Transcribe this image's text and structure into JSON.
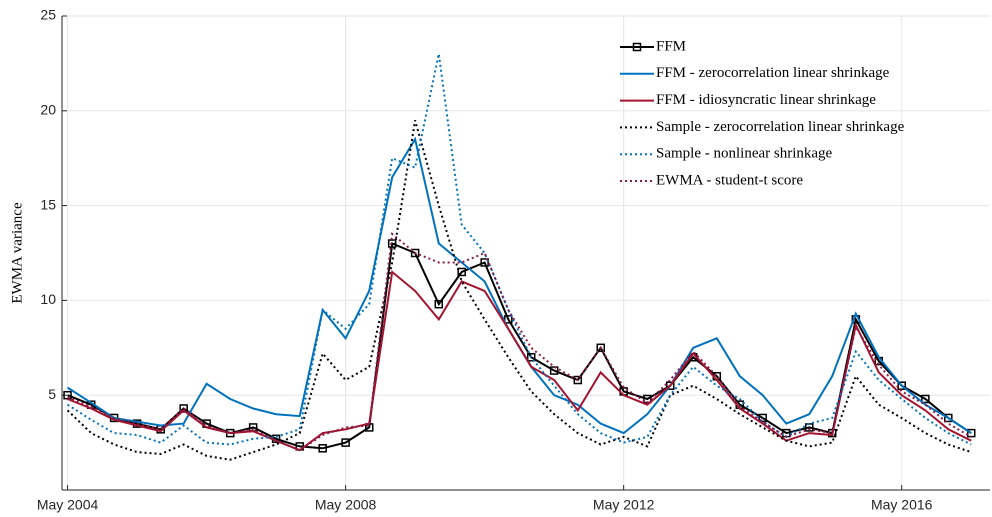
{
  "chart_data": {
    "type": "line",
    "y_label": "EWMA variance",
    "x": [
      2004.33,
      2004.67,
      2005,
      2005.33,
      2005.67,
      2006,
      2006.33,
      2006.67,
      2007,
      2007.33,
      2007.67,
      2008,
      2008.33,
      2008.67,
      2009,
      2009.33,
      2009.67,
      2010,
      2010.33,
      2010.67,
      2011,
      2011.33,
      2011.67,
      2012,
      2012.33,
      2012.67,
      2013,
      2013.33,
      2013.67,
      2014,
      2014.33,
      2014.67,
      2015,
      2015.33,
      2015.67,
      2016,
      2016.33,
      2016.67,
      2017,
      2017.33
    ],
    "xlim": [
      2004.25,
      2017.6
    ],
    "xticks": [
      {
        "value": 2004.33,
        "label": "May 2004"
      },
      {
        "value": 2008.33,
        "label": "May 2008"
      },
      {
        "value": 2012.33,
        "label": "May 2012"
      },
      {
        "value": 2016.33,
        "label": "May 2016"
      }
    ],
    "ylim": [
      0,
      25
    ],
    "yticks": [
      5,
      10,
      15,
      20,
      25
    ],
    "grid": true,
    "legend": "upper right",
    "series": [
      {
        "name": "FFM",
        "color": "#000000",
        "line_style": "solid",
        "marker": "square",
        "values": [
          5.0,
          4.5,
          3.8,
          3.5,
          3.2,
          4.3,
          3.5,
          3.0,
          3.3,
          2.7,
          2.3,
          2.2,
          2.5,
          3.3,
          13.0,
          12.5,
          9.8,
          11.5,
          12.0,
          9.0,
          7.0,
          6.3,
          5.8,
          7.5,
          5.2,
          4.8,
          5.5,
          7.0,
          6.0,
          4.5,
          3.8,
          3.0,
          3.3,
          3.0,
          9.0,
          6.8,
          5.5,
          4.8,
          3.8,
          3.0
        ]
      },
      {
        "name": "FFM - zerocorrelation linear shrinkage",
        "color": "#0072bd",
        "line_style": "solid",
        "values": [
          5.4,
          4.6,
          3.8,
          3.6,
          3.4,
          3.5,
          5.6,
          4.8,
          4.3,
          4.0,
          3.9,
          9.5,
          8.0,
          10.5,
          16.5,
          18.5,
          13.0,
          12.0,
          11.0,
          8.5,
          6.5,
          5.0,
          4.5,
          3.5,
          3.0,
          4.0,
          5.5,
          7.5,
          8.0,
          6.0,
          5.0,
          3.5,
          4.0,
          6.0,
          9.3,
          7.0,
          5.5,
          4.5,
          3.8,
          3.0
        ]
      },
      {
        "name": "FFM - idiosyncratic linear shrinkage",
        "color": "#a2142f",
        "line_style": "solid",
        "values": [
          4.8,
          4.3,
          3.7,
          3.4,
          3.1,
          4.2,
          3.3,
          3.0,
          3.1,
          2.6,
          2.1,
          3.0,
          3.2,
          3.5,
          11.5,
          10.5,
          9.0,
          11.0,
          10.5,
          8.5,
          6.5,
          5.8,
          4.2,
          6.2,
          5.0,
          4.5,
          5.5,
          7.2,
          5.8,
          4.3,
          3.5,
          2.6,
          3.0,
          2.9,
          8.7,
          6.2,
          5.0,
          4.2,
          3.2,
          2.6
        ]
      },
      {
        "name": "Sample - zerocorrelation linear shrinkage",
        "color": "#000000",
        "line_style": "dotted",
        "values": [
          4.2,
          3.0,
          2.4,
          2.0,
          1.9,
          2.4,
          1.8,
          1.6,
          2.0,
          2.4,
          3.0,
          7.2,
          5.8,
          6.5,
          12.0,
          19.5,
          15.0,
          11.0,
          9.0,
          7.0,
          5.2,
          4.0,
          3.0,
          2.4,
          2.8,
          2.3,
          5.0,
          5.5,
          4.8,
          4.0,
          3.3,
          2.6,
          2.3,
          2.5,
          6.0,
          4.5,
          3.8,
          3.0,
          2.4,
          2.0
        ]
      },
      {
        "name": "Sample - nonlinear shrinkage",
        "color": "#0072bd",
        "line_style": "dotted",
        "values": [
          4.5,
          3.7,
          3.0,
          2.9,
          2.5,
          3.4,
          2.5,
          2.4,
          2.7,
          2.8,
          3.2,
          9.5,
          8.5,
          9.8,
          17.5,
          17.0,
          23.0,
          14.0,
          12.5,
          9.5,
          7.0,
          5.5,
          4.0,
          3.0,
          2.5,
          2.8,
          5.0,
          6.5,
          5.5,
          4.8,
          3.6,
          2.8,
          3.5,
          3.8,
          7.3,
          5.8,
          4.8,
          3.8,
          3.0,
          2.4
        ]
      },
      {
        "name": "EWMA - student-t score",
        "color": "#8b1a4a",
        "line_style": "dotted",
        "values": [
          4.9,
          4.4,
          3.8,
          3.5,
          3.2,
          4.3,
          3.4,
          3.0,
          3.2,
          2.6,
          2.1,
          2.9,
          3.3,
          3.4,
          13.5,
          12.5,
          12.0,
          12.0,
          12.5,
          9.5,
          7.5,
          6.5,
          5.8,
          7.5,
          5.4,
          4.6,
          5.8,
          7.3,
          6.0,
          4.4,
          3.6,
          2.8,
          3.2,
          3.0,
          8.6,
          6.6,
          5.2,
          4.5,
          3.5,
          2.8
        ]
      }
    ]
  }
}
